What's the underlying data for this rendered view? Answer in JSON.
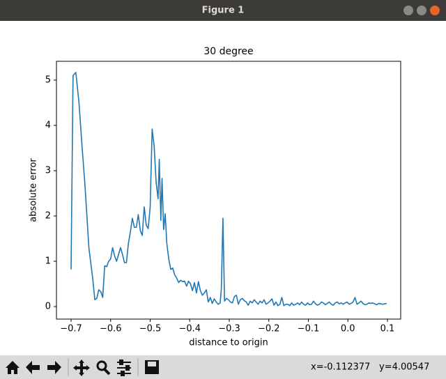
{
  "window": {
    "title": "Figure 1"
  },
  "status": {
    "x": "x=-0.112377",
    "y": "y=4.00547"
  },
  "chart_data": {
    "type": "line",
    "title": "30 degree",
    "xlabel": "distance to origin",
    "ylabel": "absolute error",
    "color": "#1f77b4",
    "xlim": [
      -0.737,
      0.1335
    ],
    "ylim": [
      -0.277,
      5.415
    ],
    "xticks": [
      {
        "value": -0.7,
        "label": "−0.7"
      },
      {
        "value": -0.6,
        "label": "−0.6"
      },
      {
        "value": -0.5,
        "label": "−0.5"
      },
      {
        "value": -0.4,
        "label": "−0.4"
      },
      {
        "value": -0.3,
        "label": "−0.3"
      },
      {
        "value": -0.2,
        "label": "−0.2"
      },
      {
        "value": -0.1,
        "label": "−0.1"
      },
      {
        "value": 0,
        "label": "0.0"
      },
      0.1
    ],
    "yticks": [
      0,
      1,
      2,
      3,
      4,
      5
    ],
    "x": [
      -0.7,
      -0.695,
      -0.688,
      -0.68,
      -0.672,
      -0.665,
      -0.655,
      -0.645,
      -0.64,
      -0.635,
      -0.63,
      -0.625,
      -0.62,
      -0.615,
      -0.61,
      -0.605,
      -0.6,
      -0.595,
      -0.59,
      -0.585,
      -0.58,
      -0.575,
      -0.57,
      -0.565,
      -0.56,
      -0.555,
      -0.55,
      -0.545,
      -0.54,
      -0.535,
      -0.53,
      -0.525,
      -0.52,
      -0.515,
      -0.51,
      -0.505,
      -0.5,
      -0.495,
      -0.49,
      -0.485,
      -0.48,
      -0.477,
      -0.473,
      -0.47,
      -0.466,
      -0.462,
      -0.458,
      -0.453,
      -0.448,
      -0.443,
      -0.438,
      -0.433,
      -0.428,
      -0.423,
      -0.418,
      -0.413,
      -0.408,
      -0.403,
      -0.398,
      -0.393,
      -0.388,
      -0.383,
      -0.378,
      -0.373,
      -0.368,
      -0.363,
      -0.358,
      -0.353,
      -0.348,
      -0.343,
      -0.338,
      -0.333,
      -0.328,
      -0.323,
      -0.32,
      -0.316,
      -0.312,
      -0.307,
      -0.302,
      -0.297,
      -0.292,
      -0.287,
      -0.282,
      -0.277,
      -0.272,
      -0.267,
      -0.262,
      -0.257,
      -0.252,
      -0.247,
      -0.242,
      -0.237,
      -0.232,
      -0.227,
      -0.222,
      -0.217,
      -0.212,
      -0.207,
      -0.202,
      -0.197,
      -0.192,
      -0.187,
      -0.182,
      -0.177,
      -0.172,
      -0.167,
      -0.162,
      -0.157,
      -0.152,
      -0.147,
      -0.142,
      -0.137,
      -0.132,
      -0.127,
      -0.122,
      -0.117,
      -0.112,
      -0.107,
      -0.102,
      -0.097,
      -0.092,
      -0.087,
      -0.082,
      -0.077,
      -0.072,
      -0.067,
      -0.062,
      -0.057,
      -0.052,
      -0.047,
      -0.042,
      -0.037,
      -0.032,
      -0.027,
      -0.022,
      -0.017,
      -0.012,
      -0.007,
      -0.002,
      0.003,
      0.008,
      0.013,
      0.018,
      0.023,
      0.028,
      0.033,
      0.038,
      0.043,
      0.048,
      0.053,
      0.058,
      0.063,
      0.068,
      0.073,
      0.078,
      0.083,
      0.088,
      0.093,
      0.098
    ],
    "values": [
      0.82,
      5.1,
      5.17,
      4.5,
      3.5,
      2.7,
      1.3,
      0.6,
      0.15,
      0.18,
      0.37,
      0.33,
      0.2,
      0.9,
      0.88,
      1.0,
      1.05,
      1.3,
      1.12,
      1.0,
      1.15,
      1.3,
      1.15,
      0.97,
      0.97,
      1.4,
      1.65,
      1.95,
      1.75,
      1.75,
      2.03,
      1.68,
      1.57,
      2.2,
      1.8,
      1.72,
      2.2,
      3.92,
      3.55,
      2.75,
      2.38,
      3.25,
      1.9,
      2.83,
      1.7,
      2.05,
      1.4,
      1.05,
      0.82,
      0.85,
      0.7,
      0.63,
      0.53,
      0.58,
      0.55,
      0.56,
      0.45,
      0.56,
      0.5,
      0.35,
      0.53,
      0.3,
      0.55,
      0.35,
      0.25,
      0.3,
      0.37,
      0.1,
      0.2,
      0.07,
      0.17,
      0.1,
      0.05,
      0.08,
      0.4,
      1.95,
      0.12,
      0.18,
      0.15,
      0.1,
      0.08,
      0.22,
      0.25,
      0.05,
      0.15,
      0.18,
      0.13,
      0.1,
      0.03,
      0.12,
      0.08,
      0.15,
      0.1,
      0.05,
      0.12,
      0.08,
      0.15,
      0.05,
      0.08,
      0.12,
      0.17,
      0.03,
      0.1,
      0.02,
      0.05,
      0.2,
      0.02,
      0.05,
      0.05,
      0.02,
      0.08,
      0.03,
      0.05,
      0.08,
      0.04,
      0.1,
      0.05,
      0.03,
      0.08,
      0.04,
      0.05,
      0.12,
      0.06,
      0.03,
      0.05,
      0.1,
      0.08,
      0.04,
      0.07,
      0.1,
      0.05,
      0.03,
      0.08,
      0.1,
      0.06,
      0.08,
      0.05,
      0.08,
      0.1,
      0.05,
      0.07,
      0.1,
      0.2,
      0.05,
      0.08,
      0.12,
      0.07,
      0.04,
      0.05,
      0.08,
      0.07,
      0.08,
      0.06,
      0.04,
      0.07,
      0.06,
      0.05,
      0.06,
      0.07
    ]
  }
}
